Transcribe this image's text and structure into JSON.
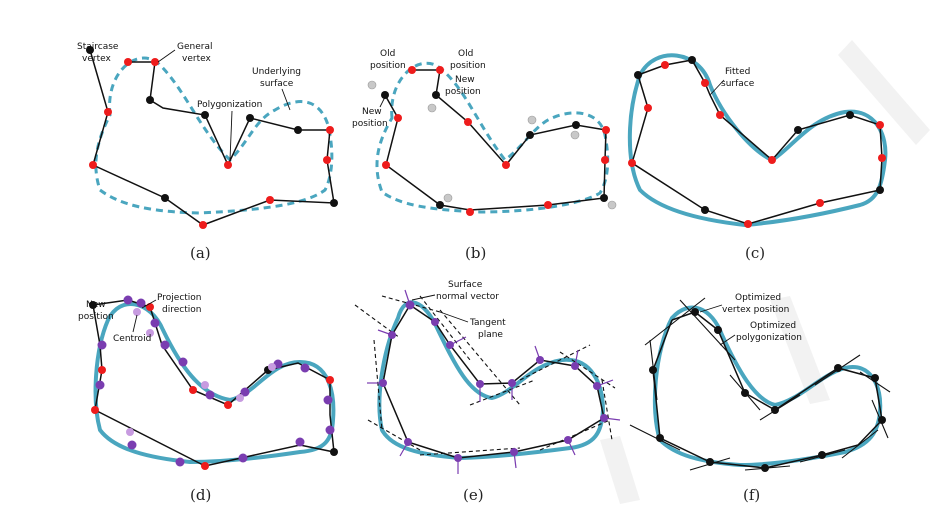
{
  "panels": {
    "a": {
      "caption": "(a)",
      "labels": {
        "staircase_vertex": [
          "Staircase",
          "vertex"
        ],
        "general_vertex": [
          "General",
          "vertex"
        ],
        "polygonization": "Polygonization",
        "underlying_surface": [
          "Underlying",
          "surface"
        ]
      }
    },
    "b": {
      "caption": "(b)",
      "labels": {
        "old_position_1": [
          "Old",
          "position"
        ],
        "old_position_2": [
          "Old",
          "position"
        ],
        "new_position_1": [
          "New",
          "position"
        ],
        "new_position_2": [
          "New",
          "position"
        ]
      }
    },
    "c": {
      "caption": "(c)",
      "labels": {
        "fitted_surface": [
          "Fitted",
          "surface"
        ]
      }
    },
    "d": {
      "caption": "(d)",
      "labels": {
        "new_position": [
          "New",
          "position"
        ],
        "projection_direction": [
          "Projection",
          "direction"
        ],
        "centroid": "Centroid"
      }
    },
    "e": {
      "caption": "(e)",
      "labels": {
        "surface_normal_vector": [
          "Surface",
          "normal vector"
        ],
        "tangent_plane": [
          "Tangent",
          "plane"
        ]
      }
    },
    "f": {
      "caption": "(f)",
      "labels": {
        "optimized_vertex_position": [
          "Optimized",
          "vertex position"
        ],
        "optimized_polygonization": [
          "Optimized",
          "polygonization"
        ]
      }
    }
  },
  "colors": {
    "surface": "#4aa6bf",
    "general_vertex": "#ee1c1c",
    "staircase_vertex": "#111111",
    "old_vertex": "#c8c8c8",
    "centroid_vertex": "#7a3db0",
    "projected_vertex": "#c79be0"
  }
}
